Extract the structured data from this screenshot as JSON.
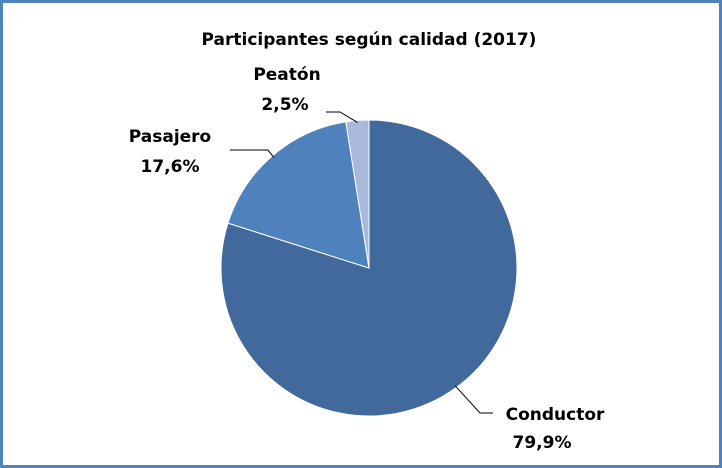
{
  "chart_data": {
    "type": "pie",
    "title": "Participantes según calidad  (2017)",
    "categories": [
      "Conductor",
      "Pasajero",
      "Peatón"
    ],
    "values": [
      79.9,
      17.6,
      2.5
    ],
    "value_labels": [
      "79,9%",
      "17,6%",
      "2,5%"
    ],
    "colors": [
      "#41699c",
      "#4f81bd",
      "#a9b9db"
    ]
  }
}
